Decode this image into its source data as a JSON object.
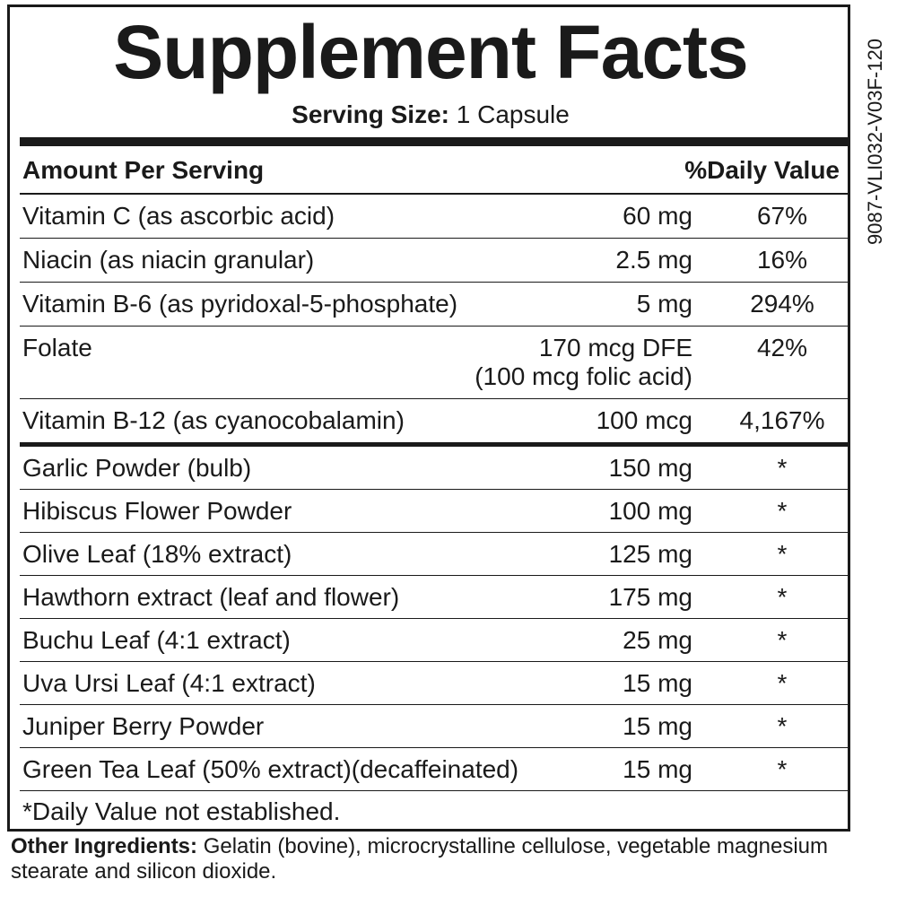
{
  "title": "Supplement Facts",
  "serving_size": {
    "label": "Serving Size:",
    "value": "1 Capsule"
  },
  "table": {
    "header": [
      "Amount Per Serving",
      "%Daily Value"
    ],
    "vitamins": [
      {
        "name": "Vitamin C (as ascorbic acid)",
        "amount": "60 mg",
        "dv": "67%"
      },
      {
        "name": "Niacin (as niacin granular)",
        "amount": "2.5 mg",
        "dv": "16%"
      },
      {
        "name": "Vitamin B-6 (as pyridoxal-5-phosphate)",
        "amount": "5 mg",
        "dv": "294%"
      },
      {
        "name": "Folate",
        "amount": "170 mcg DFE",
        "amount_note": "(100 mcg folic acid)",
        "dv": "42%"
      },
      {
        "name": "Vitamin B-12 (as cyanocobalamin)",
        "amount": "100 mcg",
        "dv": "4,167%"
      }
    ],
    "botanicals": [
      {
        "name": "Garlic Powder (bulb)",
        "amount": "150 mg",
        "dv": "*"
      },
      {
        "name": "Hibiscus Flower Powder",
        "amount": "100 mg",
        "dv": "*"
      },
      {
        "name": "Olive Leaf (18% extract)",
        "amount": "125 mg",
        "dv": "*"
      },
      {
        "name": "Hawthorn extract (leaf and flower)",
        "amount": "175 mg",
        "dv": "*"
      },
      {
        "name": "Buchu Leaf (4:1 extract)",
        "amount": "25 mg",
        "dv": "*"
      },
      {
        "name": "Uva Ursi Leaf (4:1 extract)",
        "amount": "15 mg",
        "dv": "*"
      },
      {
        "name": "Juniper Berry Powder",
        "amount": "15 mg",
        "dv": "*"
      },
      {
        "name": "Green Tea Leaf (50% extract)(decaffeinated)",
        "amount": "15 mg",
        "dv": "*"
      }
    ],
    "footnote": "*Daily Value not established."
  },
  "other_ingredients": {
    "label": "Other Ingredients:",
    "text": "Gelatin (bovine), microcrystalline cellulose, vegetable magnesium stearate and silicon dioxide."
  },
  "side_code": "9087-VLI032-V03F-120"
}
